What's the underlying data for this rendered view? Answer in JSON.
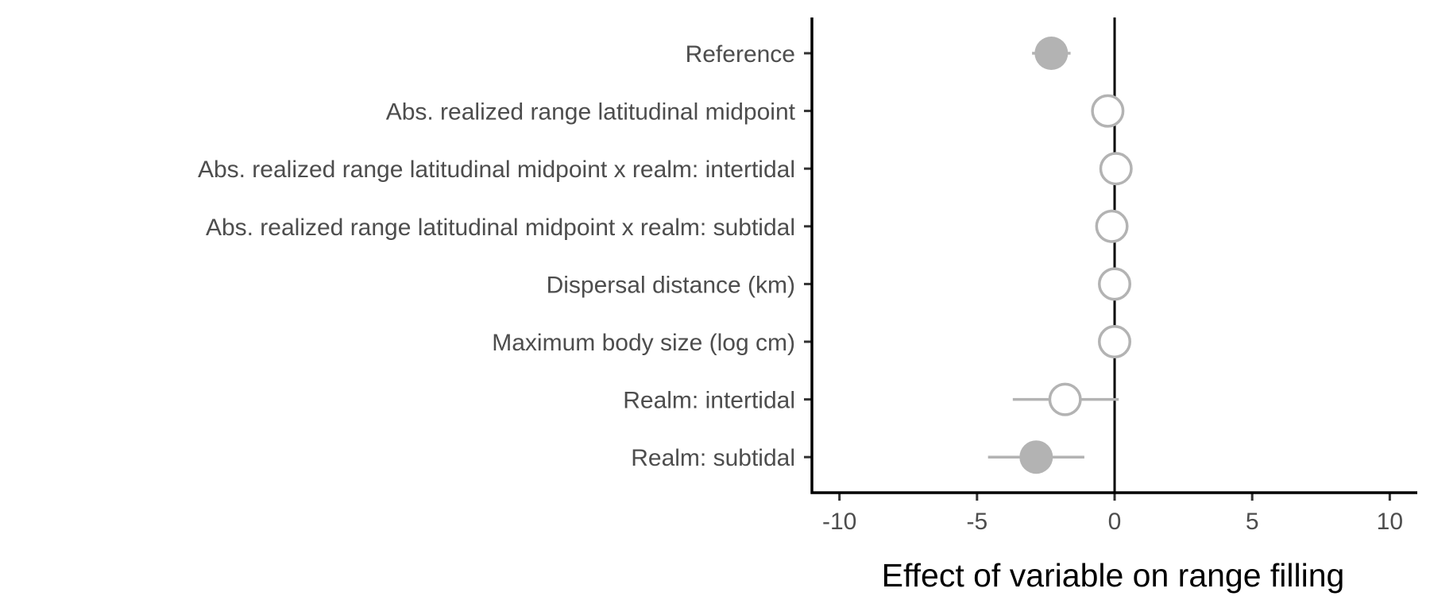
{
  "chart_data": {
    "type": "scatter",
    "title": "",
    "xlabel": "Effect of variable on range filling",
    "ylabel": "",
    "xlim": [
      -11,
      11
    ],
    "x_ticks": [
      -10,
      -5,
      0,
      5,
      10
    ],
    "x_tick_labels": [
      "-10",
      "-5",
      "0",
      "5",
      "10"
    ],
    "reference_line_x": 0,
    "grid": false,
    "legend": "none",
    "point_color": "#b3b3b3",
    "categories": [
      "Reference",
      "Abs. realized range latitudinal midpoint ",
      "Abs. realized range latitudinal midpoint x realm: intertidal",
      "Abs. realized range latitudinal midpoint x realm: subtidal",
      "Dispersal distance (km)",
      "Maximum body size (log cm)",
      "Realm: intertidal",
      "Realm: subtidal"
    ],
    "estimates": [
      -2.3,
      -0.25,
      0.05,
      -0.1,
      0.0,
      0.0,
      -1.8,
      -2.85
    ],
    "ci_low": [
      -3.0,
      -0.3,
      0.0,
      -0.15,
      -0.05,
      -0.05,
      -3.7,
      -4.6
    ],
    "ci_high": [
      -1.6,
      -0.2,
      0.1,
      -0.05,
      0.05,
      0.05,
      0.15,
      -1.1
    ],
    "significant": [
      true,
      false,
      false,
      false,
      false,
      false,
      false,
      true
    ]
  }
}
